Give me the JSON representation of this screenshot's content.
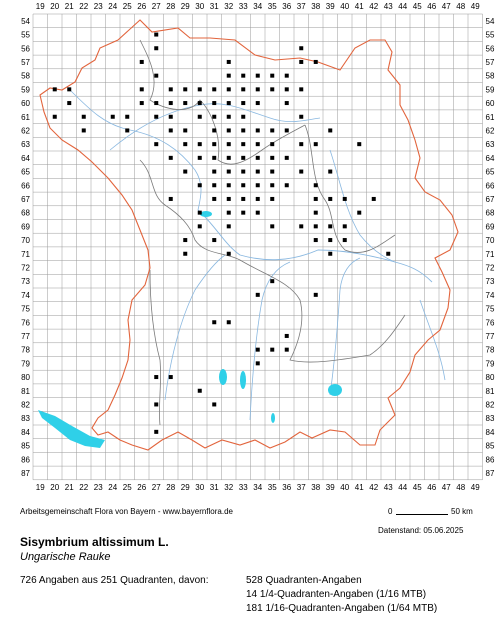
{
  "map": {
    "x_labels": [
      "19",
      "20",
      "21",
      "22",
      "23",
      "24",
      "25",
      "26",
      "27",
      "28",
      "29",
      "30",
      "31",
      "32",
      "33",
      "34",
      "35",
      "36",
      "37",
      "38",
      "39",
      "40",
      "41",
      "42",
      "43",
      "44",
      "45",
      "46",
      "47",
      "48",
      "49"
    ],
    "y_labels": [
      "54",
      "55",
      "56",
      "57",
      "58",
      "59",
      "60",
      "61",
      "62",
      "63",
      "64",
      "65",
      "66",
      "67",
      "68",
      "69",
      "70",
      "71",
      "72",
      "73",
      "74",
      "75",
      "76",
      "77",
      "78",
      "79",
      "80",
      "81",
      "82",
      "83",
      "84",
      "85",
      "86",
      "87"
    ],
    "colors": {
      "grid": "#9a9a9a",
      "state_border": "#e2643c",
      "district_border": "#7a7a7a",
      "rivers": "#8ab8e0",
      "lakes": "#2fd0e8",
      "records": "#000000"
    },
    "records": [
      [
        27,
        55
      ],
      [
        27,
        56
      ],
      [
        32,
        57
      ],
      [
        37,
        56
      ],
      [
        37,
        57
      ],
      [
        38,
        57
      ],
      [
        26,
        57
      ],
      [
        27,
        58
      ],
      [
        32,
        58
      ],
      [
        33,
        58
      ],
      [
        34,
        58
      ],
      [
        35,
        58
      ],
      [
        36,
        58
      ],
      [
        20,
        59
      ],
      [
        21,
        59
      ],
      [
        26,
        59
      ],
      [
        28,
        59
      ],
      [
        29,
        59
      ],
      [
        30,
        59
      ],
      [
        31,
        59
      ],
      [
        32,
        59
      ],
      [
        33,
        59
      ],
      [
        34,
        59
      ],
      [
        35,
        59
      ],
      [
        36,
        59
      ],
      [
        37,
        59
      ],
      [
        21,
        60
      ],
      [
        26,
        60
      ],
      [
        27,
        60
      ],
      [
        28,
        60
      ],
      [
        29,
        60
      ],
      [
        30,
        60
      ],
      [
        31,
        60
      ],
      [
        32,
        60
      ],
      [
        33,
        60
      ],
      [
        34,
        60
      ],
      [
        36,
        60
      ],
      [
        20,
        61
      ],
      [
        22,
        61
      ],
      [
        24,
        61
      ],
      [
        25,
        61
      ],
      [
        27,
        61
      ],
      [
        28,
        61
      ],
      [
        30,
        61
      ],
      [
        31,
        61
      ],
      [
        32,
        61
      ],
      [
        33,
        61
      ],
      [
        37,
        61
      ],
      [
        22,
        62
      ],
      [
        25,
        62
      ],
      [
        28,
        62
      ],
      [
        29,
        62
      ],
      [
        31,
        62
      ],
      [
        32,
        62
      ],
      [
        33,
        62
      ],
      [
        34,
        62
      ],
      [
        35,
        62
      ],
      [
        36,
        62
      ],
      [
        39,
        62
      ],
      [
        27,
        63
      ],
      [
        29,
        63
      ],
      [
        30,
        63
      ],
      [
        31,
        63
      ],
      [
        32,
        63
      ],
      [
        33,
        63
      ],
      [
        34,
        63
      ],
      [
        35,
        63
      ],
      [
        37,
        63
      ],
      [
        38,
        63
      ],
      [
        41,
        63
      ],
      [
        28,
        64
      ],
      [
        30,
        64
      ],
      [
        31,
        64
      ],
      [
        32,
        64
      ],
      [
        33,
        64
      ],
      [
        34,
        64
      ],
      [
        35,
        64
      ],
      [
        36,
        64
      ],
      [
        29,
        65
      ],
      [
        31,
        65
      ],
      [
        32,
        65
      ],
      [
        33,
        65
      ],
      [
        34,
        65
      ],
      [
        35,
        65
      ],
      [
        37,
        65
      ],
      [
        39,
        65
      ],
      [
        30,
        66
      ],
      [
        31,
        66
      ],
      [
        32,
        66
      ],
      [
        33,
        66
      ],
      [
        34,
        66
      ],
      [
        35,
        66
      ],
      [
        36,
        66
      ],
      [
        38,
        66
      ],
      [
        28,
        67
      ],
      [
        31,
        67
      ],
      [
        32,
        67
      ],
      [
        33,
        67
      ],
      [
        34,
        67
      ],
      [
        35,
        67
      ],
      [
        38,
        67
      ],
      [
        39,
        67
      ],
      [
        40,
        67
      ],
      [
        42,
        67
      ],
      [
        30,
        68
      ],
      [
        32,
        68
      ],
      [
        33,
        68
      ],
      [
        34,
        68
      ],
      [
        38,
        68
      ],
      [
        41,
        68
      ],
      [
        30,
        69
      ],
      [
        32,
        69
      ],
      [
        35,
        69
      ],
      [
        37,
        69
      ],
      [
        38,
        69
      ],
      [
        39,
        69
      ],
      [
        40,
        69
      ],
      [
        29,
        70
      ],
      [
        31,
        70
      ],
      [
        38,
        70
      ],
      [
        39,
        70
      ],
      [
        40,
        70
      ],
      [
        29,
        71
      ],
      [
        32,
        71
      ],
      [
        39,
        71
      ],
      [
        43,
        71
      ],
      [
        35,
        73
      ],
      [
        34,
        74
      ],
      [
        38,
        74
      ],
      [
        31,
        76
      ],
      [
        32,
        76
      ],
      [
        36,
        77
      ],
      [
        34,
        78
      ],
      [
        35,
        78
      ],
      [
        36,
        78
      ],
      [
        34,
        79
      ],
      [
        27,
        80
      ],
      [
        28,
        80
      ],
      [
        30,
        81
      ],
      [
        31,
        82
      ],
      [
        27,
        82
      ],
      [
        27,
        84
      ]
    ]
  },
  "footer": {
    "credit": "Arbeitsgemeinschaft Flora von Bayern - www.bayernflora.de",
    "scale_zero": "0",
    "scale_km": "50 km",
    "stand": "Datenstand: 05.06.2025",
    "species": "Sisymbrium altissimum L.",
    "common_name": "Ungarische Rauke",
    "total": "726 Angaben aus 251 Quadranten, davon:",
    "count_quadrant": "528 Quadranten-Angaben",
    "count_quarter": "14 1/4-Quadranten-Angaben (1/16 MTB)",
    "count_sixteenth": "181 1/16-Quadranten-Angaben (1/64 MTB)"
  }
}
